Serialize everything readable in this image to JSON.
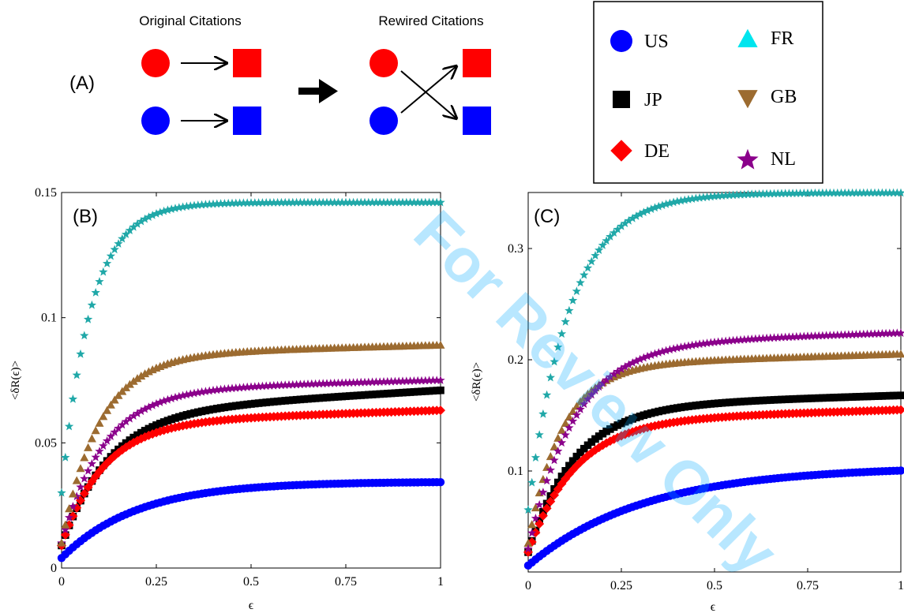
{
  "schematic": {
    "panel_label": "(A)",
    "original_title": "Original Citations",
    "rewired_title": "Rewired Citations"
  },
  "legend": {
    "entries": [
      {
        "label": "US",
        "marker": "circle",
        "color": "#0000ff"
      },
      {
        "label": "FR",
        "marker": "triangle-up",
        "color": "#00e5ee"
      },
      {
        "label": "JP",
        "marker": "square",
        "color": "#000000"
      },
      {
        "label": "GB",
        "marker": "triangle-down",
        "color": "#9c6b30"
      },
      {
        "label": "DE",
        "marker": "diamond",
        "color": "#ff0000"
      },
      {
        "label": "NL",
        "marker": "star",
        "color": "#8b008b"
      }
    ]
  },
  "watermark": {
    "text": "For Review Only",
    "color": "#00a8ff"
  },
  "chart_data": [
    {
      "panel_label": "(B)",
      "type": "scatter",
      "xlabel": "ϵ",
      "ylabel": "<δR(ϵ)>",
      "xlim": [
        0,
        1
      ],
      "ylim": [
        0,
        0.15
      ],
      "xticks": [
        "0",
        "0.25",
        "0.5",
        "0.75",
        "1"
      ],
      "yticks": [
        "0",
        "0.05",
        "0.1",
        "0.15"
      ],
      "series": [
        {
          "name": "US",
          "marker": "circle",
          "color": "#0000ff",
          "y0": 0.004,
          "ymax": 0.0345,
          "k": 5
        },
        {
          "name": "JP",
          "marker": "square",
          "color": "#000000",
          "y0": 0.009,
          "ymax": 0.062,
          "k": 8,
          "linear": 0.009
        },
        {
          "name": "DE",
          "marker": "diamond",
          "color": "#ff0000",
          "y0": 0.009,
          "ymax": 0.058,
          "k": 9,
          "linear": 0.005
        },
        {
          "name": "NL",
          "marker": "star",
          "color": "#8b008b",
          "y0": 0.01,
          "ymax": 0.071,
          "k": 9,
          "linear": 0.004
        },
        {
          "name": "GB",
          "marker": "triangle-up",
          "color": "#9c6b30",
          "y0": 0.01,
          "ymax": 0.085,
          "k": 10,
          "linear": 0.004
        },
        {
          "name": "FR",
          "marker": "star",
          "color": "#20a8a8",
          "y0": 0.03,
          "ymax": 0.146,
          "k": 13
        }
      ]
    },
    {
      "panel_label": "(C)",
      "type": "scatter",
      "xlabel": "ϵ",
      "ylabel": "<δR(ϵ)>",
      "xlim": [
        0,
        1
      ],
      "ylim": [
        0,
        0.36
      ],
      "xticks": [
        "0",
        "0.25",
        "0.5",
        "0.75",
        "1"
      ],
      "yticks": [
        "0.1",
        "0.2",
        "0.3"
      ],
      "series": [
        {
          "name": "US",
          "marker": "circle",
          "color": "#0000ff",
          "y0": 0.015,
          "ymax": 0.104,
          "k": 3.2
        },
        {
          "name": "JP",
          "marker": "square",
          "color": "#000000",
          "y0": 0.027,
          "ymax": 0.158,
          "k": 8,
          "linear": 0.01
        },
        {
          "name": "DE",
          "marker": "diamond",
          "color": "#ff0000",
          "y0": 0.027,
          "ymax": 0.145,
          "k": 8,
          "linear": 0.01
        },
        {
          "name": "GB",
          "marker": "triangle-up",
          "color": "#9c6b30",
          "y0": 0.035,
          "ymax": 0.195,
          "k": 11,
          "linear": 0.01
        },
        {
          "name": "NL",
          "marker": "star",
          "color": "#8b008b",
          "y0": 0.03,
          "ymax": 0.214,
          "k": 8,
          "linear": 0.01
        },
        {
          "name": "FR",
          "marker": "star",
          "color": "#20a8a8",
          "y0": 0.065,
          "ymax": 0.35,
          "k": 9
        }
      ]
    }
  ]
}
